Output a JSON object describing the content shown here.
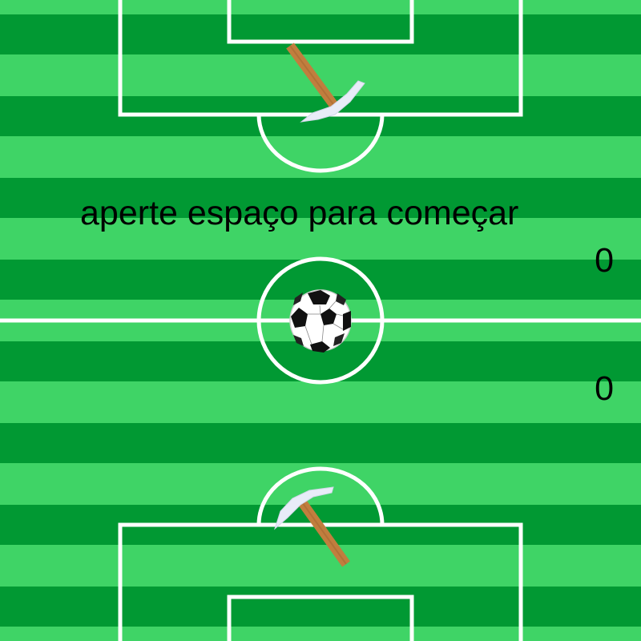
{
  "game": {
    "prompt": "aperte espaço para começar",
    "score_top": "0",
    "score_bottom": "0"
  },
  "colors": {
    "stripe_dark": "#019933",
    "stripe_light": "#3fd466",
    "lines": "#ffffff",
    "handle": "#c17e3e",
    "pick_head": "#e8ecf8",
    "text": "#000000"
  },
  "icons": {
    "top_player": "pickaxe-icon",
    "bottom_player": "pickaxe-icon",
    "ball": "soccer-ball-icon"
  }
}
